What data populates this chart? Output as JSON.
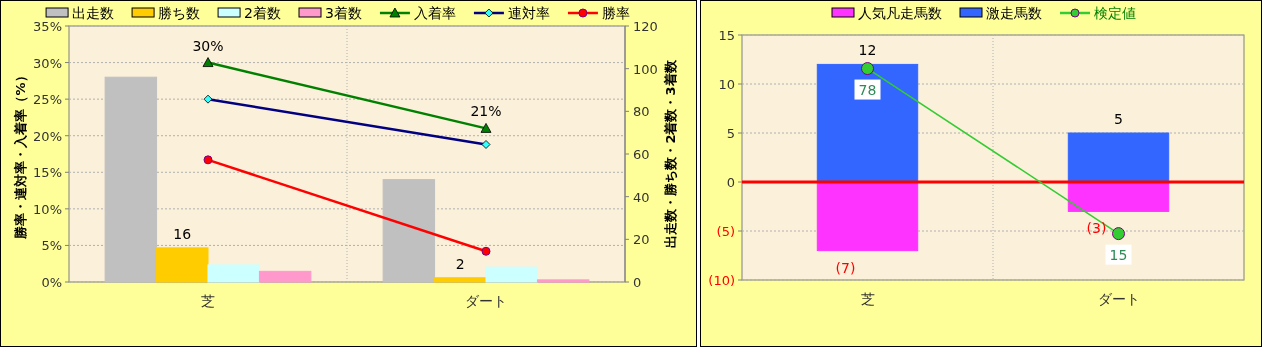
{
  "chart_data": [
    {
      "type": "bar",
      "categories": [
        "芝",
        "ダート"
      ],
      "ylabel": "勝率・連対率・入着率（%）",
      "y2label": "出走数・勝ち数・2着数・3着数",
      "ylim": [
        0,
        35
      ],
      "yticks": [
        {
          "value": 0,
          "label": "0%"
        },
        {
          "value": 5,
          "label": "5%"
        },
        {
          "value": 10,
          "label": "10%"
        },
        {
          "value": 15,
          "label": "15%"
        },
        {
          "value": 20,
          "label": "20%"
        },
        {
          "value": 25,
          "label": "25%"
        },
        {
          "value": 30,
          "label": "30%"
        },
        {
          "value": 35,
          "label": "35%"
        }
      ],
      "y2lim": [
        0,
        120
      ],
      "y2ticks": [
        0,
        20,
        40,
        60,
        80,
        100,
        120
      ],
      "grid": true,
      "legend": "top",
      "series": [
        {
          "name": "出走数",
          "axis": "y2",
          "color": "#c0c0c0",
          "values": [
            96,
            48
          ]
        },
        {
          "name": "勝ち数",
          "axis": "y2",
          "color": "#ffcc00",
          "values": [
            16,
            2
          ],
          "value_labels": [
            "16",
            "2"
          ]
        },
        {
          "name": "2着数",
          "axis": "y2",
          "color": "#ccffff",
          "values": [
            8,
            7
          ]
        },
        {
          "name": "3着数",
          "axis": "y2",
          "color": "#ff99cc",
          "values": [
            5,
            1
          ]
        },
        {
          "name": "入着率",
          "type": "line",
          "color": "#008000",
          "marker": "triangle",
          "values": [
            30,
            21
          ],
          "value_labels": [
            "30%",
            "21%"
          ]
        },
        {
          "name": "連対率",
          "type": "line",
          "color": "#000080",
          "marker": "diamond",
          "values": [
            25,
            18.8
          ]
        },
        {
          "name": "勝率",
          "type": "line",
          "color": "#ff0000",
          "marker": "circle",
          "values": [
            16.7,
            4.2
          ]
        }
      ]
    },
    {
      "type": "bar",
      "stacked": true,
      "categories": [
        "芝",
        "ダート"
      ],
      "ylim": [
        -10,
        15
      ],
      "yticks": [
        {
          "value": -10,
          "label": "(10)"
        },
        {
          "value": -5,
          "label": "(5)"
        },
        0,
        5,
        10,
        15
      ],
      "y2lim": [
        -2.7,
        90.8
      ],
      "grid": true,
      "legend": "top",
      "ref_lines": [
        {
          "axis": "y",
          "value": 0,
          "color": "#ff0000"
        }
      ],
      "series": [
        {
          "name": "人気凡走馬数",
          "color": "#ff33ff",
          "values": [
            -7,
            -3
          ],
          "value_labels": [
            "(7)",
            "(3)"
          ]
        },
        {
          "name": "激走馬数",
          "color": "#3366ff",
          "values": [
            12,
            5
          ],
          "value_labels": [
            "12",
            "5"
          ]
        },
        {
          "name": "検定値",
          "type": "line",
          "axis": "y2",
          "color": "#33cc33",
          "marker": "circle",
          "values": [
            78,
            15
          ],
          "value_labels": [
            "78",
            "15"
          ]
        }
      ]
    }
  ]
}
